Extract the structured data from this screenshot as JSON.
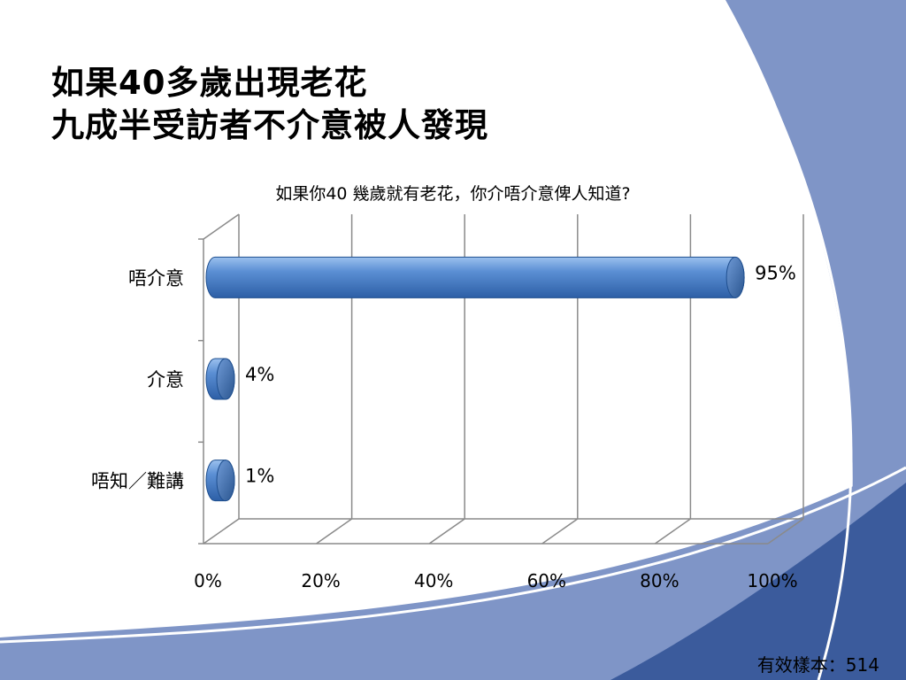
{
  "slide": {
    "title_lines": [
      "如果40多歲出現老花",
      "九成半受訪者不介意被人發現"
    ],
    "sample_size": "有效樣本：514",
    "colors": {
      "accent_dark": "#3b5b9c",
      "accent_light": "#7f95c7",
      "bar_fill": "#4a7cc0",
      "bar_edge": "#1f4f8f"
    }
  },
  "chart_data": {
    "type": "bar",
    "orientation": "horizontal",
    "style": "3d-cylinder",
    "title": "如果你40 幾歲就有老花，你介唔介意俾人知道?",
    "categories": [
      "唔介意",
      "介意",
      "唔知／難講"
    ],
    "values": [
      95,
      4,
      1
    ],
    "data_labels": [
      "95%",
      "4%",
      "1%"
    ],
    "xlim": [
      0,
      100
    ],
    "xticks": [
      0,
      20,
      40,
      60,
      80,
      100
    ],
    "xtick_labels": [
      "0%",
      "20%",
      "40%",
      "60%",
      "80%",
      "100%"
    ],
    "grid": true,
    "legend": "none"
  }
}
